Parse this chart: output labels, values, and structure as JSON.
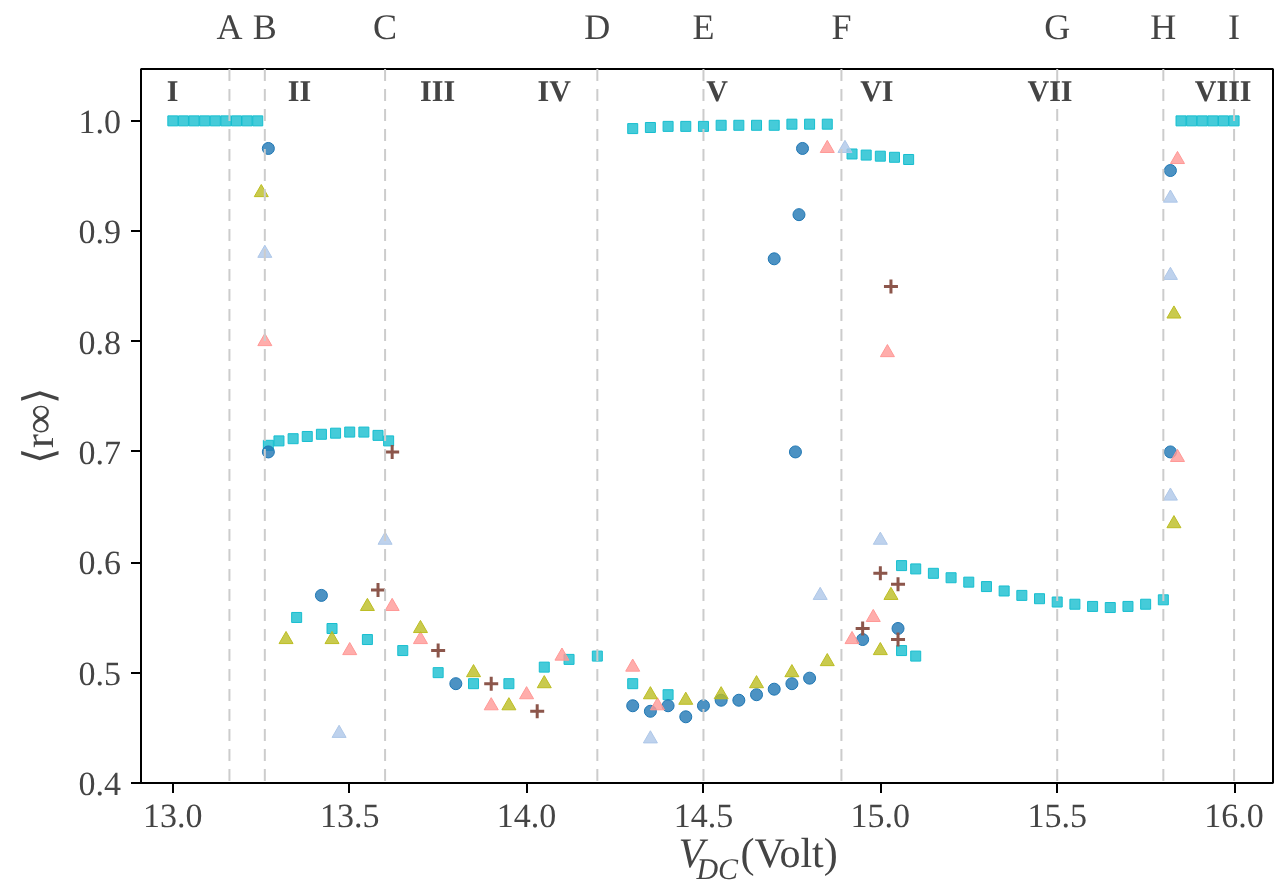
{
  "chart_data": {
    "type": "scatter",
    "xlabel": "V$_{DC}$(Volt)",
    "ylabel": "⟨r∞⟩",
    "xlim": [
      12.91,
      16.11
    ],
    "ylim": [
      0.4,
      1.047
    ],
    "xticks": [
      {
        "value": 13.0,
        "label": "13.0"
      },
      {
        "value": 13.5,
        "label": "13.5"
      },
      {
        "value": 14.0,
        "label": "14.0"
      },
      {
        "value": 14.5,
        "label": "14.5"
      },
      {
        "value": 15.0,
        "label": "15.0"
      },
      {
        "value": 15.5,
        "label": "15.5"
      },
      {
        "value": 16.0,
        "label": "16.0"
      }
    ],
    "yticks": [
      {
        "value": 0.4,
        "label": "0.4"
      },
      {
        "value": 0.5,
        "label": "0.5"
      },
      {
        "value": 0.6,
        "label": "0.6"
      },
      {
        "value": 0.7,
        "label": "0.7"
      },
      {
        "value": 0.8,
        "label": "0.8"
      },
      {
        "value": 0.9,
        "label": "0.9"
      },
      {
        "value": 1.0,
        "label": "1.0"
      }
    ],
    "grid": false,
    "ref_lines": [
      {
        "axis": "x",
        "value": 13.16,
        "label": "A",
        "color": "#cccccc",
        "line_style": "dashed"
      },
      {
        "axis": "x",
        "value": 13.26,
        "label": "B",
        "color": "#cccccc",
        "line_style": "dashed"
      },
      {
        "axis": "x",
        "value": 13.6,
        "label": "C",
        "color": "#cccccc",
        "line_style": "dashed"
      },
      {
        "axis": "x",
        "value": 14.2,
        "label": "D",
        "color": "#cccccc",
        "line_style": "dashed"
      },
      {
        "axis": "x",
        "value": 14.5,
        "label": "E",
        "color": "#cccccc",
        "line_style": "dashed"
      },
      {
        "axis": "x",
        "value": 14.89,
        "label": "F",
        "color": "#cccccc",
        "line_style": "dashed"
      },
      {
        "axis": "x",
        "value": 15.5,
        "label": "G",
        "color": "#cccccc",
        "line_style": "dashed"
      },
      {
        "axis": "x",
        "value": 15.8,
        "label": "H",
        "color": "#cccccc",
        "line_style": "dashed"
      },
      {
        "axis": "x",
        "value": 16.0,
        "label": "I",
        "color": "#cccccc",
        "line_style": "dashed"
      }
    ],
    "annotations": [
      "I",
      "II",
      "III",
      "IV",
      "V",
      "VI",
      "VII",
      "VIII"
    ],
    "series": [
      {
        "color": "#17becf",
        "marker": "square",
        "x": [
          13.0,
          13.03,
          13.06,
          13.09,
          13.12,
          13.15,
          13.18,
          13.21,
          13.24,
          13.27,
          13.3,
          13.34,
          13.38,
          13.42,
          13.46,
          13.5,
          13.54,
          13.58,
          13.61,
          13.35,
          13.45,
          13.55,
          13.65,
          13.75,
          13.85,
          13.95,
          14.05,
          14.12,
          14.2,
          14.3,
          14.4,
          14.3,
          14.35,
          14.4,
          14.45,
          14.5,
          14.55,
          14.6,
          14.65,
          14.7,
          14.75,
          14.8,
          14.85,
          14.92,
          14.96,
          15.0,
          15.04,
          15.08,
          15.06,
          15.1,
          15.15,
          15.2,
          15.25,
          15.3,
          15.35,
          15.4,
          15.45,
          15.5,
          15.55,
          15.6,
          15.65,
          15.7,
          15.75,
          15.8,
          15.85,
          15.88,
          15.91,
          15.94,
          15.97,
          16.0,
          15.06,
          15.1
        ],
        "values": [
          1.0,
          1.0,
          1.0,
          1.0,
          1.0,
          1.0,
          1.0,
          1.0,
          1.0,
          0.706,
          0.71,
          0.712,
          0.714,
          0.716,
          0.717,
          0.718,
          0.718,
          0.715,
          0.71,
          0.55,
          0.54,
          0.53,
          0.52,
          0.5,
          0.49,
          0.49,
          0.505,
          0.512,
          0.515,
          0.49,
          0.48,
          0.993,
          0.994,
          0.995,
          0.995,
          0.995,
          0.996,
          0.996,
          0.996,
          0.996,
          0.997,
          0.997,
          0.997,
          0.97,
          0.969,
          0.968,
          0.967,
          0.965,
          0.597,
          0.594,
          0.59,
          0.586,
          0.582,
          0.578,
          0.574,
          0.57,
          0.567,
          0.564,
          0.562,
          0.56,
          0.559,
          0.56,
          0.562,
          0.566,
          1.0,
          1.0,
          1.0,
          1.0,
          1.0,
          1.0,
          0.52,
          0.515
        ]
      },
      {
        "color": "#1f77b4",
        "marker": "circle",
        "x": [
          13.27,
          13.27,
          13.42,
          13.8,
          14.3,
          14.35,
          14.4,
          14.45,
          14.5,
          14.55,
          14.6,
          14.65,
          14.7,
          14.75,
          14.8,
          14.7,
          14.76,
          14.77,
          14.78,
          15.82,
          15.82,
          14.95,
          15.05
        ],
        "values": [
          0.975,
          0.7,
          0.57,
          0.49,
          0.47,
          0.465,
          0.47,
          0.46,
          0.47,
          0.475,
          0.475,
          0.48,
          0.485,
          0.49,
          0.495,
          0.875,
          0.7,
          0.915,
          0.975,
          0.955,
          0.7,
          0.53,
          0.54
        ]
      },
      {
        "color": "#ff9896",
        "marker": "triangle",
        "x": [
          13.26,
          13.5,
          13.62,
          13.9,
          14.1,
          14.3,
          14.37,
          14.85,
          14.98,
          15.02,
          15.84,
          15.84,
          13.7,
          14.0,
          14.92
        ],
        "values": [
          0.8,
          0.52,
          0.56,
          0.47,
          0.515,
          0.505,
          0.47,
          0.975,
          0.55,
          0.79,
          0.965,
          0.695,
          0.53,
          0.48,
          0.53
        ]
      },
      {
        "color": "#bcbd22",
        "marker": "triangle",
        "x": [
          13.25,
          13.32,
          13.45,
          13.55,
          13.7,
          13.85,
          13.95,
          14.05,
          14.35,
          14.45,
          14.55,
          14.65,
          14.75,
          14.85,
          15.0,
          15.83,
          15.83,
          15.03
        ],
        "values": [
          0.935,
          0.53,
          0.53,
          0.56,
          0.54,
          0.5,
          0.47,
          0.49,
          0.48,
          0.475,
          0.48,
          0.49,
          0.5,
          0.51,
          0.52,
          0.825,
          0.635,
          0.57
        ]
      },
      {
        "color": "#8c564b",
        "marker": "cross",
        "x": [
          13.62,
          13.58,
          13.75,
          13.9,
          14.03,
          14.95,
          15.03,
          15.0,
          15.05,
          15.05
        ],
        "values": [
          0.7,
          0.575,
          0.52,
          0.49,
          0.465,
          0.54,
          0.85,
          0.59,
          0.58,
          0.53
        ]
      },
      {
        "color": "#aec7e8",
        "marker": "triangle",
        "x": [
          13.26,
          13.47,
          13.6,
          14.35,
          15.0,
          15.82,
          15.82,
          15.82,
          14.9,
          14.83
        ],
        "values": [
          0.88,
          0.445,
          0.62,
          0.44,
          0.62,
          0.93,
          0.86,
          0.66,
          0.975,
          0.57
        ]
      }
    ]
  }
}
